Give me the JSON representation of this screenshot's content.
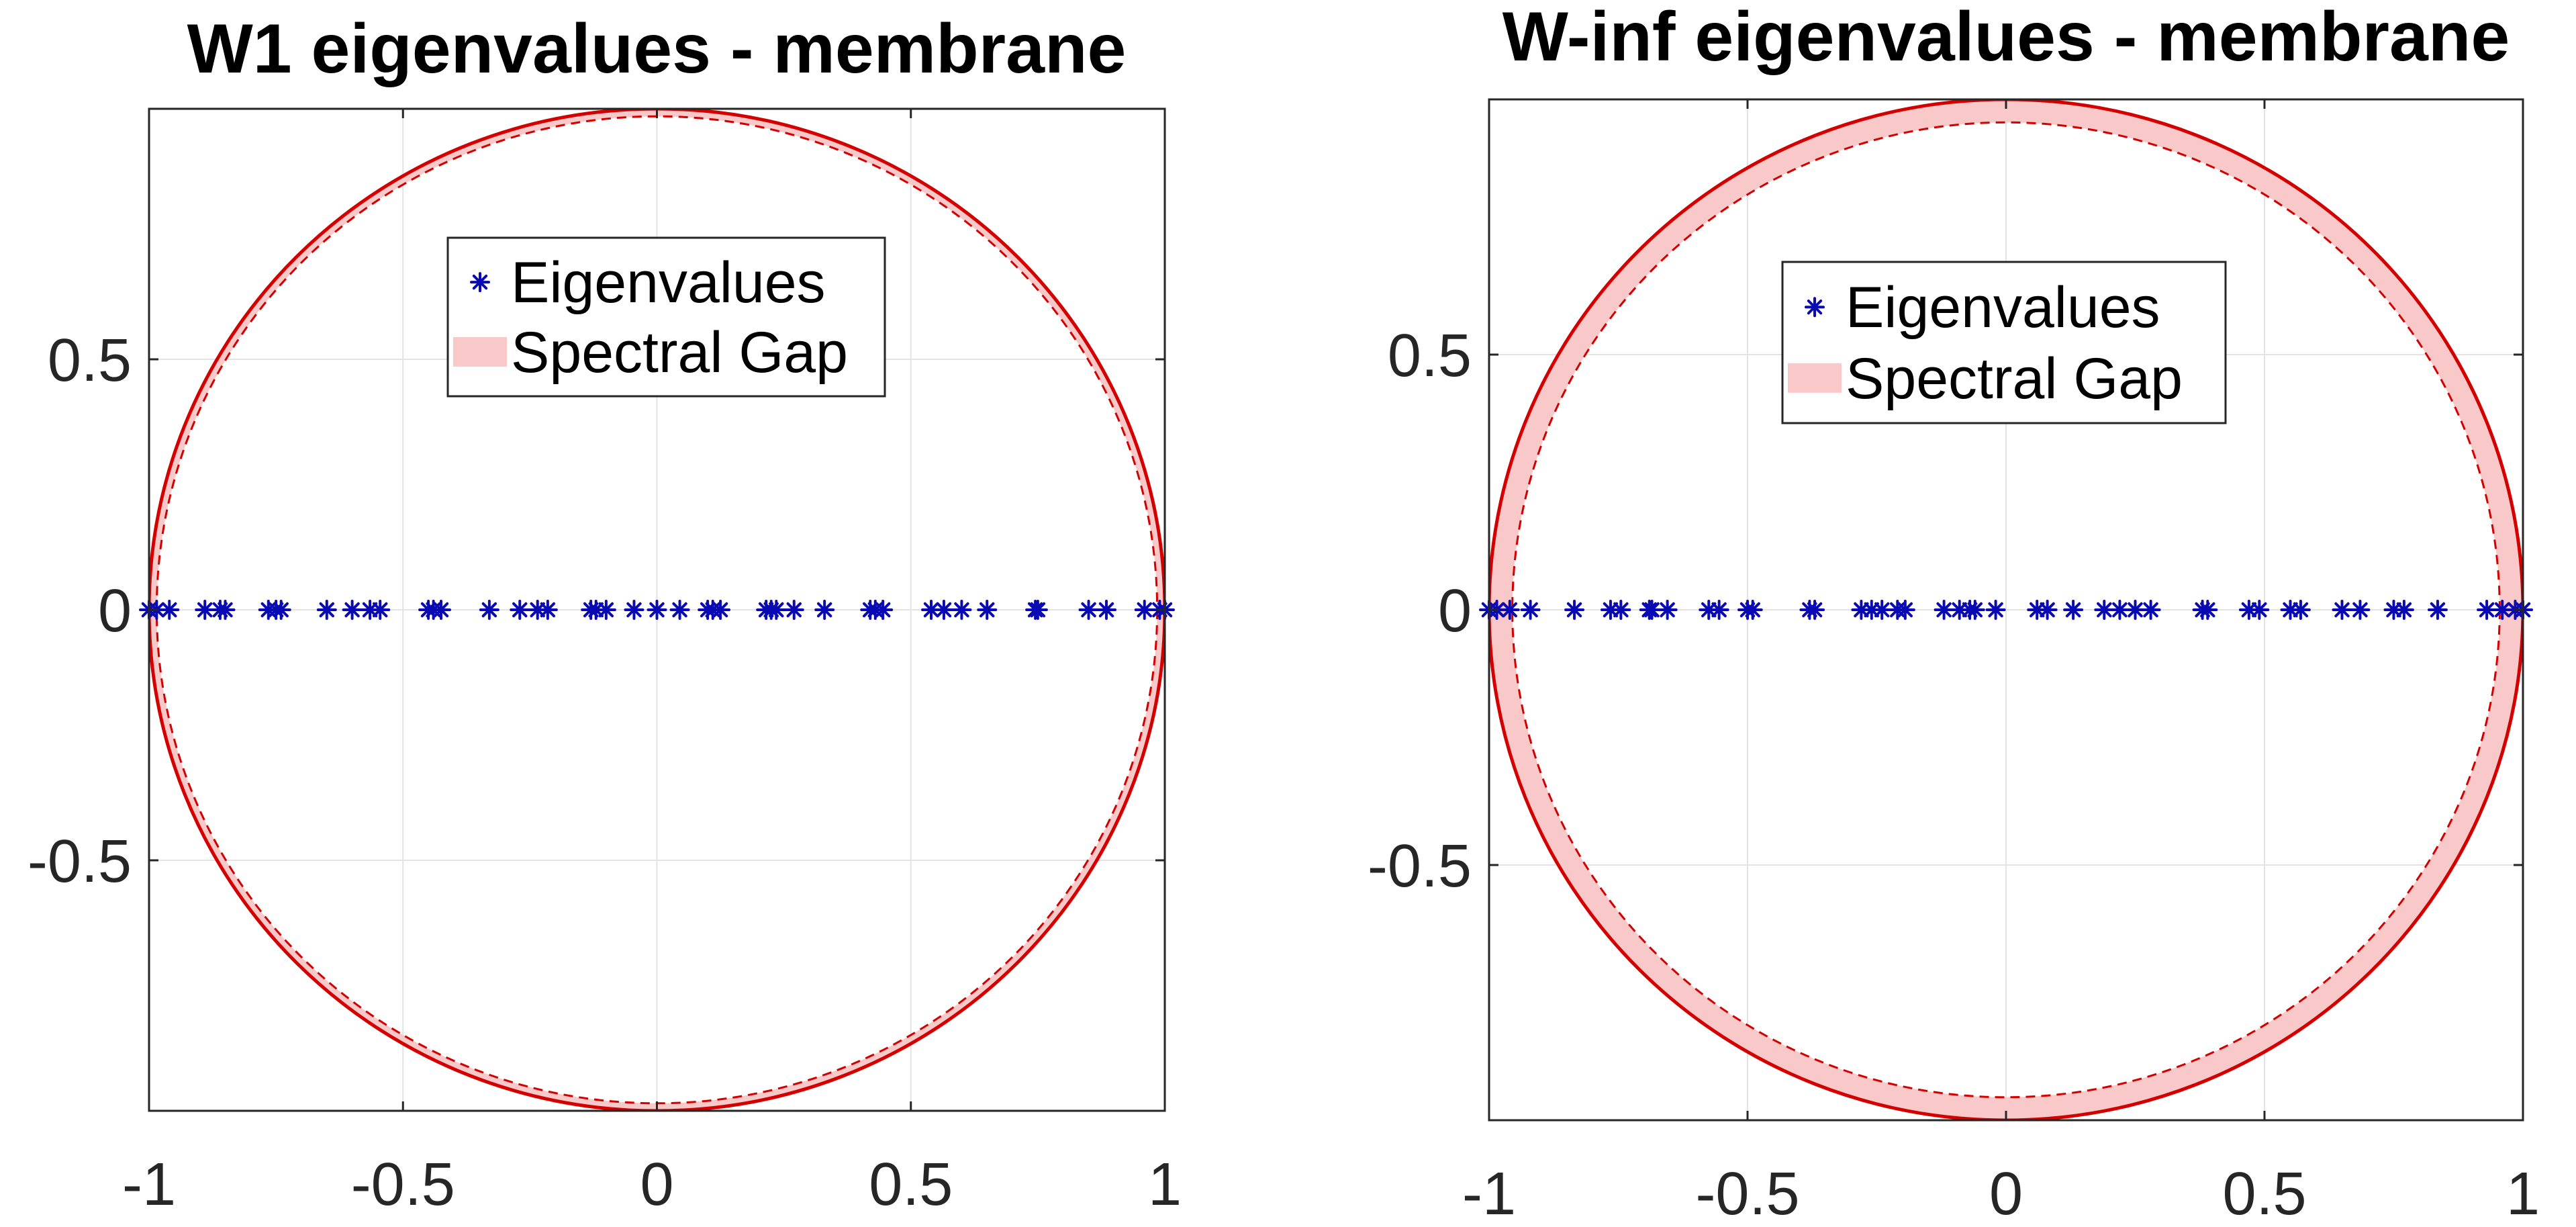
{
  "colors": {
    "circle": "#d40000",
    "gap_fill": "#f9c8c8",
    "eigen_marker": "#0a0ab4",
    "axes": "#262626",
    "grid": "#e3e3e3",
    "legend_box": "#262626"
  },
  "chart_data": [
    {
      "type": "scatter",
      "title": "W1 eigenvalues - membrane",
      "xlabel": "",
      "ylabel": "",
      "xlim": [
        -1,
        1
      ],
      "ylim": [
        -1,
        1
      ],
      "grid": true,
      "xticks": [
        -1,
        -0.5,
        0,
        0.5,
        1
      ],
      "xtick_labels": [
        "-1",
        "-0.5",
        "0",
        "0.5",
        "1"
      ],
      "yticks": [
        -0.5,
        0,
        0.5
      ],
      "ytick_labels": [
        "-0.5",
        "0",
        "0.5"
      ],
      "spectral_gap": {
        "outer_radius": 1.0,
        "inner_radius": 0.985
      },
      "legend": {
        "placement": "top-center",
        "entries": [
          "Eigenvalues",
          "Spectral Gap"
        ]
      },
      "series": [
        {
          "name": "Eigenvalues",
          "marker": "*",
          "x": [
            -1.0,
            -0.985,
            -0.96,
            -0.89,
            -0.86,
            -0.85,
            -0.765,
            -0.75,
            -0.74,
            -0.65,
            -0.6,
            -0.565,
            -0.545,
            -0.45,
            -0.44,
            -0.425,
            -0.33,
            -0.27,
            -0.235,
            -0.215,
            -0.13,
            -0.12,
            -0.1,
            -0.045,
            0.0,
            0.045,
            0.1,
            0.11,
            0.125,
            0.215,
            0.225,
            0.235,
            0.27,
            0.33,
            0.42,
            0.43,
            0.445,
            0.54,
            0.565,
            0.6,
            0.65,
            0.745,
            0.75,
            0.85,
            0.885,
            0.96,
            0.99,
            1.0
          ],
          "y": [
            0,
            0,
            0,
            0,
            0,
            0,
            0,
            0,
            0,
            0,
            0,
            0,
            0,
            0,
            0,
            0,
            0,
            0,
            0,
            0,
            0,
            0,
            0,
            0,
            0,
            0,
            0,
            0,
            0,
            0,
            0,
            0,
            0,
            0,
            0,
            0,
            0,
            0,
            0,
            0,
            0,
            0,
            0,
            0,
            0,
            0,
            0,
            0
          ]
        }
      ]
    },
    {
      "type": "scatter",
      "title": "W-inf eigenvalues - membrane",
      "xlabel": "",
      "ylabel": "",
      "xlim": [
        -1,
        1
      ],
      "ylim": [
        -1,
        1
      ],
      "grid": true,
      "xticks": [
        -1,
        -0.5,
        0,
        0.5,
        1
      ],
      "xtick_labels": [
        "-1",
        "-0.5",
        "0",
        "0.5",
        "1"
      ],
      "yticks": [
        -0.5,
        0,
        0.5
      ],
      "ytick_labels": [
        "-0.5",
        "0",
        "0.5"
      ],
      "spectral_gap": {
        "outer_radius": 1.0,
        "inner_radius": 0.955
      },
      "legend": {
        "placement": "top-center",
        "entries": [
          "Eigenvalues",
          "Spectral Gap"
        ]
      },
      "series": [
        {
          "name": "Eigenvalues",
          "marker": "*",
          "x": [
            -1.0,
            -0.985,
            -0.96,
            -0.92,
            -0.835,
            -0.765,
            -0.745,
            -0.69,
            -0.685,
            -0.655,
            -0.575,
            -0.555,
            -0.5,
            -0.49,
            -0.38,
            -0.37,
            -0.28,
            -0.26,
            -0.24,
            -0.21,
            -0.195,
            -0.12,
            -0.09,
            -0.07,
            -0.06,
            -0.02,
            0.06,
            0.08,
            0.13,
            0.19,
            0.22,
            0.25,
            0.28,
            0.38,
            0.39,
            0.47,
            0.49,
            0.55,
            0.57,
            0.65,
            0.685,
            0.75,
            0.77,
            0.835,
            0.93,
            0.96,
            0.985,
            1.0
          ],
          "y": [
            0,
            0,
            0,
            0,
            0,
            0,
            0,
            0,
            0,
            0,
            0,
            0,
            0,
            0,
            0,
            0,
            0,
            0,
            0,
            0,
            0,
            0,
            0,
            0,
            0,
            0,
            0,
            0,
            0,
            0,
            0,
            0,
            0,
            0,
            0,
            0,
            0,
            0,
            0,
            0,
            0,
            0,
            0,
            0,
            0,
            0,
            0,
            0
          ]
        }
      ]
    }
  ]
}
